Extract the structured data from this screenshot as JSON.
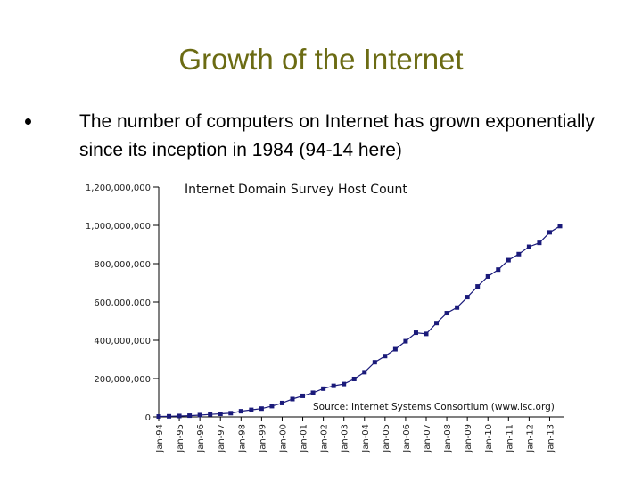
{
  "slide": {
    "title": "Growth of the Internet",
    "bullet_text": "The number of computers on Internet has grown exponentially since its inception in 1984 (94-14 here)"
  },
  "chart_data": {
    "type": "line",
    "title": "Internet Domain Survey Host Count",
    "annotation": "Source: Internet Systems Consortium (www.isc.org)",
    "xlabel": "",
    "ylabel": "",
    "ylim": [
      0,
      1200000000
    ],
    "y_ticks": [
      "0",
      "200,000,000",
      "400,000,000",
      "600,000,000",
      "800,000,000",
      "1,000,000,000",
      "1,200,000,000"
    ],
    "x_tick_labels": [
      "Jan-94",
      "Jan-95",
      "Jan-96",
      "Jan-97",
      "Jan-98",
      "Jan-99",
      "Jan-00",
      "Jan-01",
      "Jan-02",
      "Jan-03",
      "Jan-04",
      "Jan-05",
      "Jan-06",
      "Jan-07",
      "Jan-08",
      "Jan-09",
      "Jan-10",
      "Jan-11",
      "Jan-12",
      "Jan-13"
    ],
    "x_start": "Jan-94",
    "x_step_months": 6,
    "grid": false,
    "legend": "none",
    "series_color": "#1a1a7a",
    "series": [
      {
        "name": "",
        "values": [
          2217000,
          3212000,
          4852000,
          6642000,
          9472000,
          12881000,
          16146000,
          19540000,
          29670000,
          36739000,
          43230000,
          56218000,
          72398000,
          93047000,
          109574000,
          125888000,
          147345000,
          162128000,
          171638000,
          197728000,
          233101000,
          285139000,
          317646000,
          353284000,
          394992000,
          439286000,
          433193000,
          489774000,
          541677000,
          570937000,
          625226000,
          681064000,
          732740000,
          768913000,
          818374000,
          849869000,
          888239000,
          908585000,
          963518000,
          996230000
        ]
      }
    ]
  }
}
